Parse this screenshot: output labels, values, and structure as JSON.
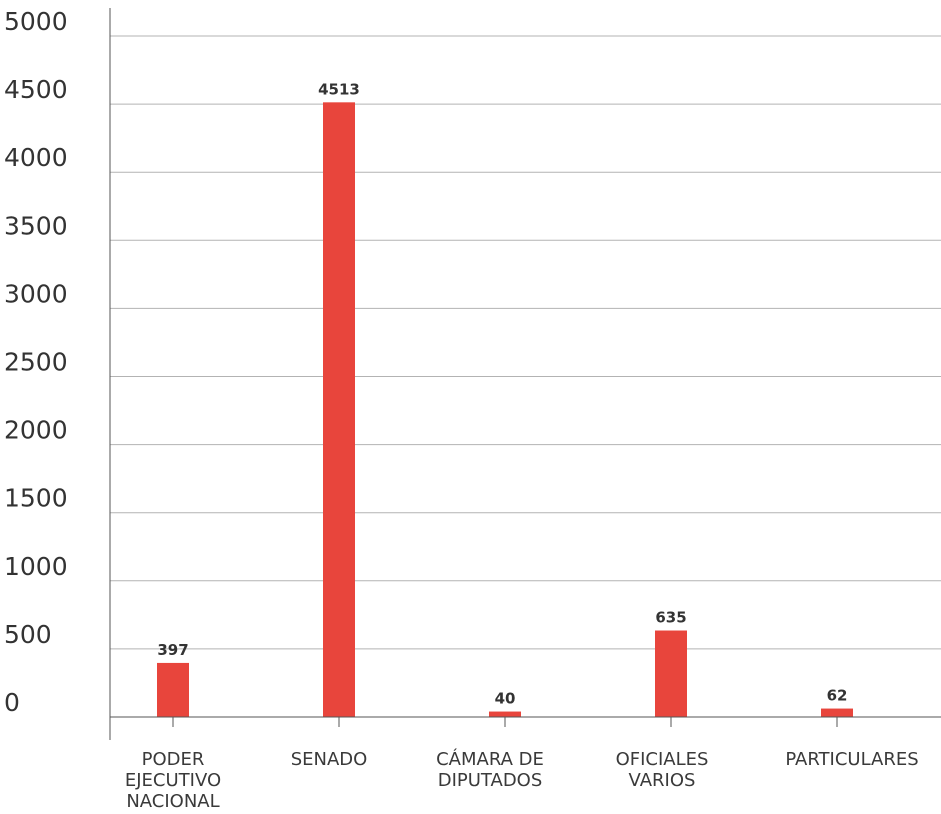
{
  "chart_data": {
    "type": "bar",
    "categories": [
      [
        "PODER",
        "EJECUTIVO",
        "NACIONAL"
      ],
      [
        "SENADO"
      ],
      [
        "CÁMARA DE",
        "DIPUTADOS"
      ],
      [
        "OFICIALES",
        "VARIOS"
      ],
      [
        "PARTICULARES"
      ]
    ],
    "values": [
      397,
      4513,
      40,
      635,
      62
    ],
    "data_labels": [
      "397",
      "4513",
      "40",
      "635",
      "62"
    ],
    "yticks": [
      0,
      500,
      1000,
      1500,
      2000,
      2500,
      3000,
      3500,
      4000,
      4500,
      5000
    ],
    "ylim": [
      0,
      5000
    ],
    "grid": true,
    "legend": "none",
    "colors": {
      "bar": "#e8453c",
      "grid": "#b3b3b3",
      "axis": "#555555",
      "text": "#333333"
    }
  }
}
